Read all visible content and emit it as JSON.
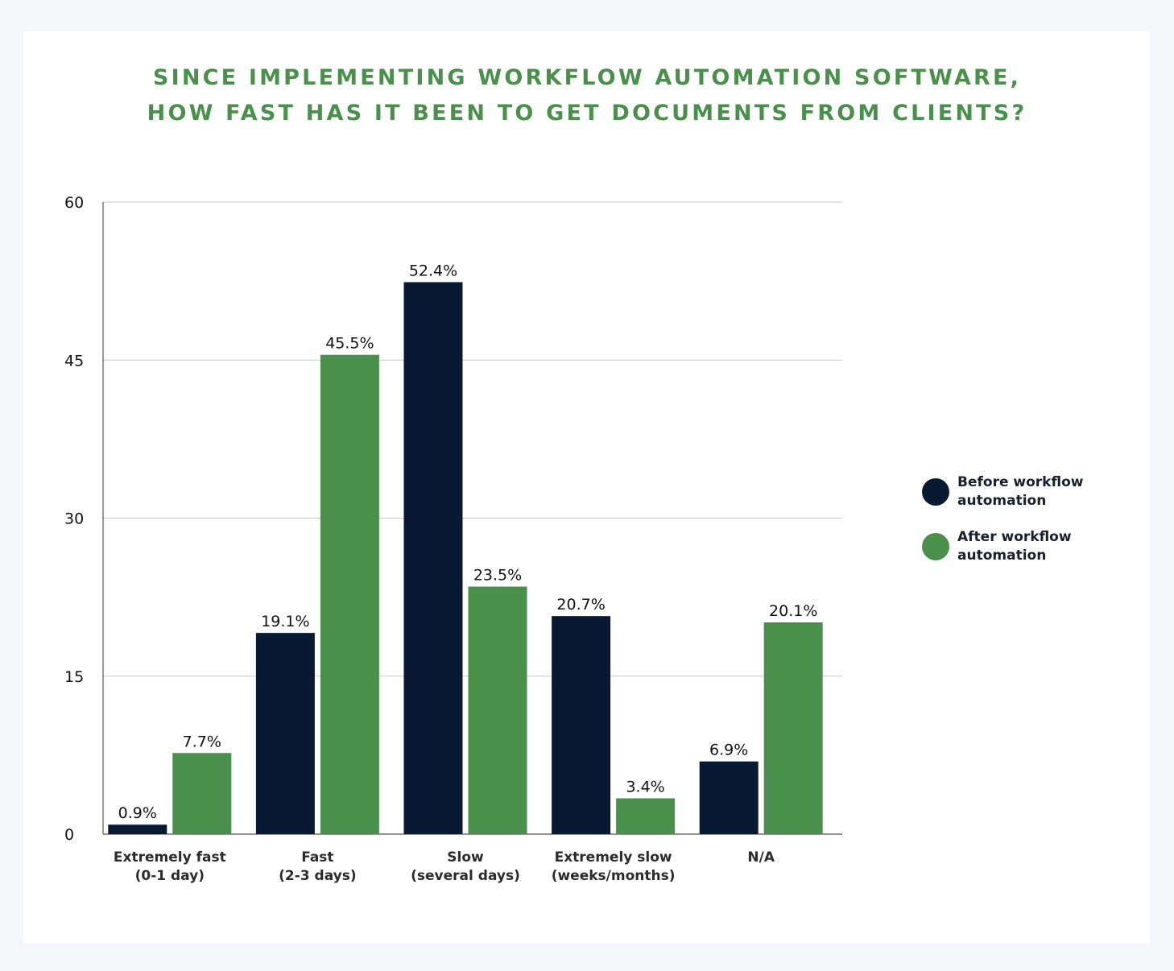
{
  "chart_data": {
    "type": "bar",
    "title_lines": [
      "SINCE IMPLEMENTING WORKFLOW AUTOMATION SOFTWARE,",
      "HOW FAST HAS IT BEEN TO GET DOCUMENTS FROM CLIENTS?"
    ],
    "categories": [
      [
        "Extremely fast",
        "(0-1 day)"
      ],
      [
        "Fast",
        "(2-3 days)"
      ],
      [
        "Slow",
        "(several days)"
      ],
      [
        "Extremely slow",
        "(weeks/months)"
      ],
      [
        "N/A"
      ]
    ],
    "series": [
      {
        "name": "Before workflow automation",
        "color": "#081a32",
        "values": [
          0.9,
          19.1,
          52.4,
          20.7,
          6.9
        ],
        "labels": [
          "0.9%",
          "19.1%",
          "52.4%",
          "20.7%",
          "6.9%"
        ]
      },
      {
        "name": "After workflow automation",
        "color": "#4a8f4c",
        "values": [
          7.7,
          45.5,
          23.5,
          3.4,
          20.1
        ],
        "labels": [
          "7.7%",
          "45.5%",
          "23.5%",
          "3.4%",
          "20.1%"
        ]
      }
    ],
    "ylim": [
      0,
      60
    ],
    "yticks": [
      0,
      15,
      30,
      45,
      60
    ],
    "ytick_labels": [
      "0",
      "15",
      "30",
      "45",
      "60"
    ],
    "grid": true,
    "legend_position": "right"
  },
  "legend": {
    "before_label": "Before workflow automation",
    "after_label": "After workflow automation"
  }
}
